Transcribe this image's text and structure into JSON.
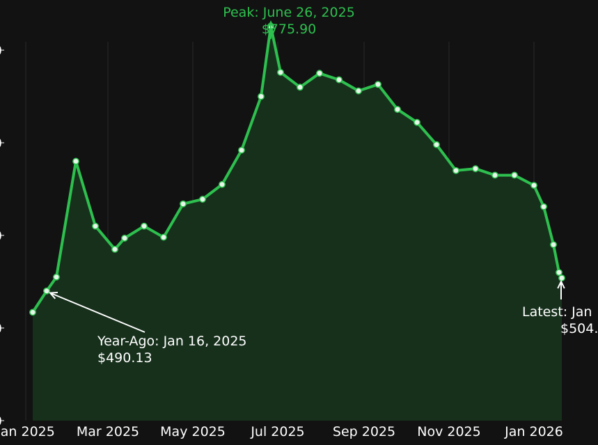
{
  "chart_data": {
    "type": "area",
    "title": "",
    "xlabel": "",
    "ylabel": "",
    "colors": {
      "background": "#121212",
      "line": "#2ec04f",
      "fill": "#17301c",
      "grid": "#2a2a2a",
      "text": "#ffffff",
      "peak_text": "#2ec04f"
    },
    "grid": true,
    "x_ticks": [
      "2025-01-01",
      "2025-03-01",
      "2025-05-01",
      "2025-07-01",
      "2025-09-01",
      "2025-11-01",
      "2026-01-01"
    ],
    "x_tick_labels": [
      "Jan 2025",
      "Mar 2025",
      "May 2025",
      "Jul 2025",
      "Sep 2025",
      "Nov 2025",
      "Jan 2026"
    ],
    "xlim": [
      "2025-01-01",
      "2026-01-22"
    ],
    "ylim": [
      350,
      820
    ],
    "y_ticks": [
      350,
      450,
      550,
      650,
      750
    ],
    "series": [
      {
        "x": [
          "2025-01-06",
          "2025-01-16",
          "2025-01-23",
          "2025-02-06",
          "2025-02-20",
          "2025-03-06",
          "2025-03-13",
          "2025-03-27",
          "2025-04-10",
          "2025-04-24",
          "2025-05-08",
          "2025-05-22",
          "2025-06-05",
          "2025-06-19",
          "2025-06-26",
          "2025-07-03",
          "2025-07-17",
          "2025-07-31",
          "2025-08-14",
          "2025-08-28",
          "2025-09-11",
          "2025-09-25",
          "2025-10-09",
          "2025-10-23",
          "2025-11-06",
          "2025-11-20",
          "2025-12-04",
          "2025-12-18",
          "2026-01-01",
          "2026-01-08",
          "2026-01-15",
          "2026-01-19",
          "2026-01-21"
        ],
        "values": [
          467,
          490,
          505,
          630,
          560,
          535,
          547,
          560,
          548,
          584,
          589,
          605,
          642,
          700,
          775.9,
          726,
          710,
          725,
          718,
          706,
          713,
          686,
          672,
          648,
          620,
          622,
          615,
          615,
          604,
          581,
          540,
          510,
          504
        ]
      }
    ],
    "annotations": {
      "peak": {
        "line1": "Peak: June 26, 2025",
        "line2": "$775.90",
        "x": "2025-06-26",
        "y": 775.9
      },
      "year_ago": {
        "line1": "Year-Ago: Jan 16, 2025",
        "line2": "$490.13",
        "x": "2025-01-16",
        "y": 490.13
      },
      "latest": {
        "line1": "Latest: Jan",
        "line2": "$504.",
        "x": "2026-01-21",
        "y": 504
      }
    }
  }
}
